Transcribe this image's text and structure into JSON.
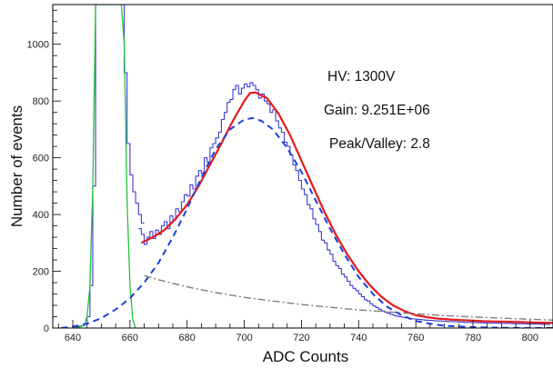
{
  "chart_data": {
    "type": "line",
    "xlabel": "ADC Counts",
    "ylabel": "Number of events",
    "xlim": [
      633,
      808
    ],
    "ylim": [
      0,
      1140
    ],
    "x_ticks": [
      640,
      660,
      680,
      700,
      720,
      740,
      760,
      780,
      800
    ],
    "y_ticks": [
      0,
      200,
      400,
      600,
      800,
      1000
    ],
    "grid": false,
    "legend": "none",
    "annotations": [
      "HV: 1300V",
      "Gain: 9.251E+06",
      "Peak/Valley: 2.8"
    ],
    "colors": {
      "data_histogram": "#3b3bd6",
      "total_fit": "#e31a1c",
      "signal_component": "#1f3fe0",
      "background_component": "#7f7f7f",
      "pedestal": "#22c43a"
    },
    "series": [
      {
        "style": "step",
        "color_key": "data_histogram",
        "x": [
          663,
          664,
          665,
          666,
          667,
          668,
          669,
          670,
          671,
          672,
          673,
          674,
          675,
          676,
          677,
          678,
          679,
          680,
          681,
          682,
          683,
          684,
          685,
          686,
          687,
          688,
          689,
          690,
          691,
          692,
          693,
          694,
          695,
          696,
          697,
          698,
          699,
          700,
          701,
          702,
          703,
          704,
          705,
          706,
          707,
          708,
          709,
          710,
          711,
          712,
          713,
          714,
          715,
          716,
          717,
          718,
          719,
          720,
          721,
          722,
          723,
          724,
          725,
          726,
          727,
          728,
          729,
          730,
          731,
          732,
          733,
          734,
          735,
          736,
          737,
          738,
          739,
          740,
          741,
          742,
          743,
          744,
          745,
          746,
          747,
          748,
          749,
          750,
          751,
          752,
          753,
          754,
          755,
          756,
          757,
          758,
          759,
          760,
          761,
          762,
          763,
          764,
          765,
          766,
          767,
          768,
          769,
          770,
          771,
          772,
          773,
          774,
          775,
          776,
          777,
          778,
          779,
          780,
          781,
          782,
          783,
          784,
          785,
          786,
          787,
          788,
          789,
          790,
          791,
          792,
          793,
          794,
          795,
          796,
          797,
          798,
          799,
          800,
          801,
          802,
          803,
          804,
          805,
          806
        ],
        "y": [
          350,
          330,
          295,
          320,
          340,
          315,
          345,
          330,
          360,
          375,
          350,
          395,
          380,
          420,
          410,
          445,
          470,
          465,
          505,
          490,
          535,
          555,
          545,
          600,
          585,
          635,
          650,
          670,
          690,
          735,
          760,
          795,
          805,
          840,
          855,
          825,
          845,
          860,
          850,
          865,
          855,
          840,
          810,
          825,
          800,
          790,
          760,
          770,
          730,
          705,
          690,
          655,
          640,
          610,
          575,
          555,
          520,
          490,
          470,
          435,
          420,
          385,
          365,
          340,
          310,
          300,
          275,
          260,
          235,
          220,
          210,
          190,
          180,
          165,
          150,
          140,
          132,
          120,
          110,
          100,
          95,
          85,
          78,
          72,
          66,
          60,
          56,
          52,
          48,
          45,
          42,
          40,
          38,
          36,
          35,
          33,
          32,
          31,
          30,
          29,
          28,
          27,
          27,
          26,
          25,
          25,
          24,
          24,
          23,
          23,
          22,
          22,
          21,
          21,
          20,
          20,
          20,
          19,
          19,
          19,
          18,
          18,
          18,
          17,
          17,
          17,
          17,
          16,
          16,
          16,
          16,
          15,
          15,
          15,
          15,
          15,
          14,
          14,
          14,
          14,
          14,
          13,
          13,
          13
        ]
      },
      {
        "style": "step",
        "color_key": "data_histogram",
        "x": [
          640,
          641,
          642,
          643,
          644,
          645,
          646,
          647,
          648,
          649,
          650,
          651,
          652,
          653,
          654,
          655,
          656,
          657,
          658,
          659,
          660,
          661,
          662,
          663,
          664
        ],
        "y": [
          5,
          5,
          6,
          8,
          15,
          40,
          150,
          500,
          1140,
          1140,
          1140,
          1140,
          1140,
          1140,
          1140,
          1140,
          1140,
          1140,
          900,
          650,
          540,
          480,
          440,
          400,
          370
        ]
      },
      {
        "style": "line",
        "color_key": "pedestal",
        "x": [
          640,
          642,
          644,
          645,
          646,
          647,
          648,
          649,
          650,
          651,
          652,
          653,
          654,
          655,
          656,
          657,
          658,
          659,
          660,
          661,
          662
        ],
        "y": [
          0,
          2,
          10,
          40,
          150,
          500,
          1140,
          1140,
          1140,
          1140,
          1140,
          1140,
          1140,
          1140,
          1140,
          1140,
          1000,
          450,
          150,
          30,
          0
        ]
      },
      {
        "style": "solid",
        "color_key": "total_fit",
        "x": [
          664,
          668,
          672,
          676,
          680,
          684,
          688,
          692,
          696,
          700,
          702,
          704,
          708,
          712,
          716,
          720,
          724,
          728,
          732,
          736,
          740,
          744,
          748,
          752,
          756,
          760,
          764,
          768,
          772,
          776,
          780,
          784,
          788,
          792,
          796,
          800,
          804,
          808
        ],
        "y": [
          300,
          320,
          345,
          385,
          435,
          500,
          575,
          650,
          730,
          800,
          828,
          830,
          810,
          755,
          680,
          590,
          500,
          410,
          330,
          260,
          200,
          150,
          110,
          80,
          60,
          45,
          38,
          33,
          30,
          28,
          26,
          24,
          23,
          22,
          21,
          20,
          19,
          18
        ]
      },
      {
        "style": "dashed",
        "color_key": "signal_component",
        "x": [
          636,
          640,
          645,
          650,
          655,
          660,
          665,
          670,
          675,
          680,
          685,
          690,
          695,
          700,
          703,
          706,
          710,
          715,
          720,
          725,
          730,
          735,
          740,
          745,
          750,
          755,
          760,
          765,
          770,
          780,
          790,
          800,
          808
        ],
        "y": [
          0,
          5,
          15,
          35,
          65,
          105,
          160,
          230,
          320,
          420,
          530,
          630,
          700,
          735,
          740,
          730,
          700,
          635,
          550,
          450,
          350,
          260,
          180,
          120,
          75,
          45,
          25,
          15,
          8,
          3,
          1,
          0,
          0
        ]
      },
      {
        "style": "dashdot",
        "color_key": "background_component",
        "x": [
          665,
          670,
          680,
          690,
          700,
          710,
          720,
          730,
          740,
          750,
          760,
          770,
          780,
          790,
          800,
          808
        ],
        "y": [
          185,
          170,
          145,
          125,
          108,
          95,
          83,
          73,
          64,
          57,
          50,
          44,
          39,
          35,
          31,
          28
        ]
      }
    ]
  }
}
